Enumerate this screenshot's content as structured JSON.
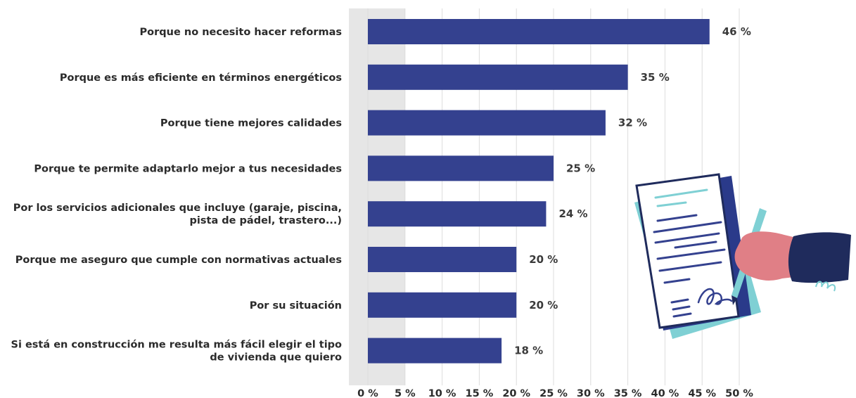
{
  "chart_data": {
    "type": "bar",
    "orientation": "horizontal",
    "categories": [
      [
        "Porque no necesito hacer reformas"
      ],
      [
        "Porque es más eficiente en términos energéticos"
      ],
      [
        "Porque tiene mejores calidades"
      ],
      [
        "Porque te permite adaptarlo mejor a tus necesidades"
      ],
      [
        "Por los servicios adicionales que incluye (garaje, piscina,",
        "pista de pádel, trastero...)"
      ],
      [
        "Porque me aseguro que cumple con normativas actuales"
      ],
      [
        "Por su situación"
      ],
      [
        "Si está en construcción me resulta más fácil elegir el tipo",
        "de vivienda que quiero"
      ]
    ],
    "values": [
      46,
      35,
      32,
      25,
      24,
      20,
      20,
      18
    ],
    "value_labels": [
      "46 %",
      "35 %",
      "32 %",
      "25 %",
      "24 %",
      "20 %",
      "20 %",
      "18 %"
    ],
    "xticks": [
      0,
      5,
      10,
      15,
      20,
      25,
      30,
      35,
      40,
      45,
      50
    ],
    "xtick_labels": [
      "0 %",
      "5 %",
      "10 %",
      "15 %",
      "20 %",
      "25 %",
      "30 %",
      "35 %",
      "40 %",
      "45 %",
      "50 %"
    ],
    "xlim": [
      0,
      50
    ],
    "grid": true,
    "title": "",
    "xlabel": "",
    "ylabel": ""
  },
  "colors": {
    "bar": "#34418f",
    "grid": "#dcdcdc",
    "zero_band": "#e6e6e6",
    "paper": "#ffffff",
    "paper_outline": "#1f2b5c",
    "paper_line": "#34418f",
    "paper_accent": "#7fd0d4",
    "back_sheet": "#2a3a8a",
    "teal_sheet": "#7fd0d4",
    "hand": "#e07f86",
    "sleeve": "#1f2b5c",
    "pen": "#7fd0d4"
  },
  "illustration": {
    "icon": "contract-signing-illustration"
  }
}
